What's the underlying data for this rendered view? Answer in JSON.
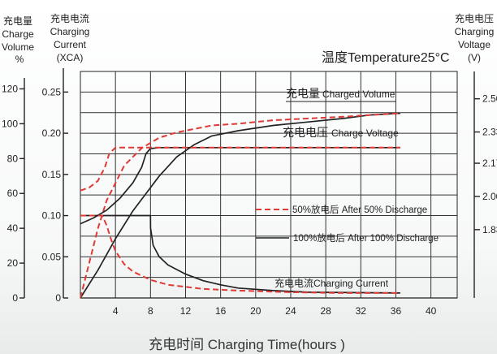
{
  "chart_data": {
    "type": "line",
    "temperature_label": "温度Temperature25°C",
    "xlabel": "充电时间 Charging Time(hours )",
    "x_ticks": [
      4,
      8,
      12,
      16,
      20,
      24,
      28,
      32,
      36,
      40
    ],
    "xlim": [
      0,
      43
    ],
    "axes": {
      "volume": {
        "label_lines": [
          "充电量",
          "Charge",
          "Volume",
          "%"
        ],
        "ticks": [
          "0",
          "20",
          "40",
          "60",
          "80",
          "100",
          "120"
        ],
        "ylim": [
          0,
          130
        ]
      },
      "current": {
        "label_lines": [
          "充电电流",
          "Charging",
          "Current",
          "(XCA)"
        ],
        "ticks": [
          "0",
          "0.05",
          "0.10",
          "0.15",
          "0.20",
          "0.25"
        ],
        "ylim": [
          0,
          0.275
        ]
      },
      "voltage": {
        "label_lines": [
          "充电电压",
          "Charging",
          "Voltage",
          "(V)"
        ],
        "ticks": [
          "1.83",
          "2.00",
          "2.17",
          "2.33",
          "2.50"
        ],
        "ylim": [
          1.48,
          2.64
        ]
      }
    },
    "legend": [
      {
        "style": "dashed",
        "color": "#e03a36",
        "label": "50%放电后 After 50% Discharge"
      },
      {
        "style": "solid",
        "color": "#222222",
        "label": "100%放电后 After 100% Discharge"
      }
    ],
    "annotations": {
      "charged_volume": {
        "cn": "充电量",
        "en": "Charged Volume"
      },
      "charge_voltage": {
        "cn": "充电电压",
        "en": "Charge Voltage"
      },
      "charging_current": {
        "cn": "充电电流",
        "en": "Charging Current"
      }
    },
    "series": [
      {
        "name": "充电量 Charged Volume",
        "condition": "After 100% Discharge",
        "axis": "volume",
        "style": "solid",
        "color": "#222222",
        "x": [
          0,
          2,
          4,
          6,
          7.5,
          9,
          11,
          13,
          15,
          18,
          22,
          26,
          30,
          33,
          36.5
        ],
        "y": [
          0,
          16,
          34,
          50,
          60,
          70,
          81,
          88,
          93,
          96,
          99,
          101,
          103,
          105,
          106
        ]
      },
      {
        "name": "充电量 Charged Volume",
        "condition": "After 50% Discharge",
        "axis": "volume",
        "style": "dashed",
        "color": "#e03a36",
        "x": [
          0,
          2,
          3,
          5,
          7,
          9,
          11,
          13,
          15,
          18,
          22,
          26,
          30,
          33,
          36.5
        ],
        "y": [
          0,
          40,
          56,
          76,
          86,
          92,
          95,
          97,
          99,
          100,
          102,
          103,
          104,
          105,
          106
        ]
      },
      {
        "name": "充电电压 Charge Voltage",
        "condition": "After 100% Discharge",
        "axis": "voltage",
        "style": "solid",
        "color": "#222222",
        "x": [
          0,
          1.5,
          3,
          4.5,
          6,
          7,
          7.5,
          8,
          9,
          11,
          36.5
        ],
        "y": [
          1.86,
          1.89,
          1.93,
          1.99,
          2.07,
          2.15,
          2.22,
          2.245,
          2.25,
          2.25,
          2.25
        ]
      },
      {
        "name": "充电电压 Charge Voltage",
        "condition": "After 50% Discharge",
        "axis": "voltage",
        "style": "dashed",
        "color": "#e03a36",
        "x": [
          0,
          1,
          2,
          2.8,
          3.3,
          4,
          8,
          36.5
        ],
        "y": [
          2.03,
          2.045,
          2.08,
          2.15,
          2.22,
          2.25,
          2.25,
          2.25
        ]
      },
      {
        "name": "充电电流 Charging Current",
        "condition": "After 100% Discharge",
        "axis": "current",
        "style": "solid",
        "color": "#222222",
        "x": [
          0,
          8,
          8.01,
          8.3,
          9,
          10,
          12,
          14,
          16,
          18,
          22,
          26,
          36.5
        ],
        "y": [
          0.1,
          0.1,
          0.085,
          0.064,
          0.05,
          0.04,
          0.029,
          0.021,
          0.016,
          0.012,
          0.009,
          0.007,
          0.006
        ]
      },
      {
        "name": "充电电流 Charging Current",
        "condition": "After 50% Discharge",
        "axis": "current",
        "style": "dashed",
        "color": "#e03a36",
        "x": [
          0,
          2.5,
          3,
          3.5,
          4,
          5,
          6,
          8,
          10,
          14,
          18,
          24,
          30,
          36.5
        ],
        "y": [
          0.1,
          0.1,
          0.088,
          0.071,
          0.057,
          0.041,
          0.032,
          0.022,
          0.016,
          0.011,
          0.009,
          0.007,
          0.006,
          0.006
        ]
      }
    ]
  }
}
